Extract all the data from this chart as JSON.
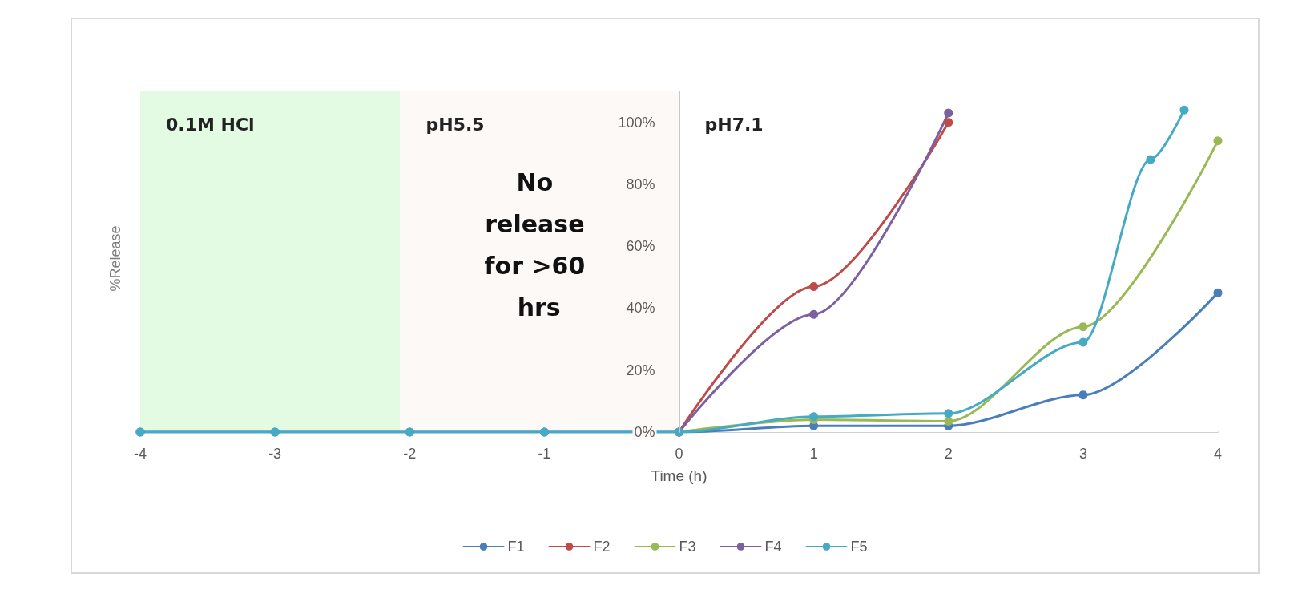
{
  "chart_data": {
    "type": "line",
    "xlabel": "Time (h)",
    "ylabel": "%Release",
    "xlim": [
      -4,
      4
    ],
    "xticks": [
      -4,
      -3,
      -2,
      -1,
      0,
      1,
      2,
      3,
      4
    ],
    "ylim": [
      0,
      110
    ],
    "yticks": [
      {
        "value": 0,
        "label": "0%"
      },
      {
        "value": 20,
        "label": "20%"
      },
      {
        "value": 40,
        "label": "40%"
      },
      {
        "value": 60,
        "label": "60%"
      },
      {
        "value": 80,
        "label": "80%"
      },
      {
        "value": 100,
        "label": "100%"
      }
    ],
    "grid": false,
    "legend": "bottom",
    "marker": "circle",
    "line_style": "solid",
    "bands": [
      {
        "axis": "x",
        "from": -4,
        "to": -2.07,
        "label": "0.1M HCl",
        "color": "#e3fbe3"
      },
      {
        "axis": "x",
        "from": -2.07,
        "to": 0,
        "label": "pH5.5",
        "color": "#fdf9f6"
      },
      {
        "axis": "x",
        "from": 0,
        "to": 4,
        "label": "pH7.1",
        "color": "#ffffff"
      }
    ],
    "annotations": [
      "No release for >60 hrs"
    ],
    "series": [
      {
        "name": "F1",
        "color": "#4a7ebb",
        "x": [
          -4,
          -3,
          -2,
          -1,
          0,
          1,
          2,
          3,
          4
        ],
        "values": [
          0,
          0,
          0,
          0,
          0,
          2,
          2,
          12,
          45
        ]
      },
      {
        "name": "F2",
        "color": "#be4b48",
        "x": [
          0,
          1,
          2
        ],
        "values": [
          0,
          47,
          100
        ]
      },
      {
        "name": "F3",
        "color": "#98b954",
        "x": [
          0,
          1,
          2,
          3,
          4
        ],
        "values": [
          0,
          4,
          3.5,
          34,
          94
        ]
      },
      {
        "name": "F4",
        "color": "#7d60a0",
        "x": [
          0,
          1,
          2
        ],
        "values": [
          0,
          38,
          103
        ]
      },
      {
        "name": "F5",
        "color": "#46aac5",
        "x": [
          -4,
          -3,
          -2,
          -1,
          0,
          1,
          2,
          3,
          3.5,
          3.75
        ],
        "values": [
          0,
          0,
          0,
          0,
          0,
          5,
          6,
          29,
          88,
          104
        ]
      }
    ]
  }
}
